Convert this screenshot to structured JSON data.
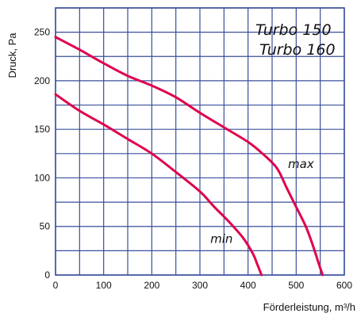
{
  "chart_data": {
    "type": "line",
    "title_lines": [
      "Turbo 150",
      "Turbo 160"
    ],
    "xlabel": "Förderleistung, m³/h",
    "ylabel": "Druck, Pa",
    "xlim": [
      0,
      600
    ],
    "ylim": [
      0,
      275
    ],
    "x_ticks": [
      0,
      100,
      200,
      300,
      400,
      500,
      600
    ],
    "y_ticks": [
      0,
      50,
      100,
      150,
      200,
      250
    ],
    "grid": true,
    "x_grid_step": 50,
    "y_grid_step": 25,
    "series": [
      {
        "name": "max",
        "color": "#e0004d",
        "points": [
          [
            0,
            245
          ],
          [
            50,
            232
          ],
          [
            100,
            218
          ],
          [
            150,
            205
          ],
          [
            200,
            195
          ],
          [
            250,
            183
          ],
          [
            300,
            167
          ],
          [
            350,
            152
          ],
          [
            400,
            137
          ],
          [
            430,
            125
          ],
          [
            460,
            110
          ],
          [
            480,
            90
          ],
          [
            500,
            70
          ],
          [
            520,
            50
          ],
          [
            535,
            30
          ],
          [
            548,
            10
          ],
          [
            555,
            0
          ]
        ]
      },
      {
        "name": "min",
        "color": "#e0004d",
        "points": [
          [
            0,
            186
          ],
          [
            50,
            169
          ],
          [
            100,
            155
          ],
          [
            150,
            140
          ],
          [
            200,
            125
          ],
          [
            250,
            106
          ],
          [
            300,
            86
          ],
          [
            330,
            70
          ],
          [
            360,
            55
          ],
          [
            390,
            38
          ],
          [
            410,
            22
          ],
          [
            420,
            10
          ],
          [
            428,
            0
          ]
        ]
      }
    ],
    "series_labels": [
      {
        "text": "max",
        "x": 510,
        "y": 110
      },
      {
        "text": "min",
        "x": 345,
        "y": 33
      }
    ],
    "colors": {
      "grid": "#3a4f9c",
      "frame": "#3a4f9c",
      "curve": "#e0004d"
    }
  }
}
